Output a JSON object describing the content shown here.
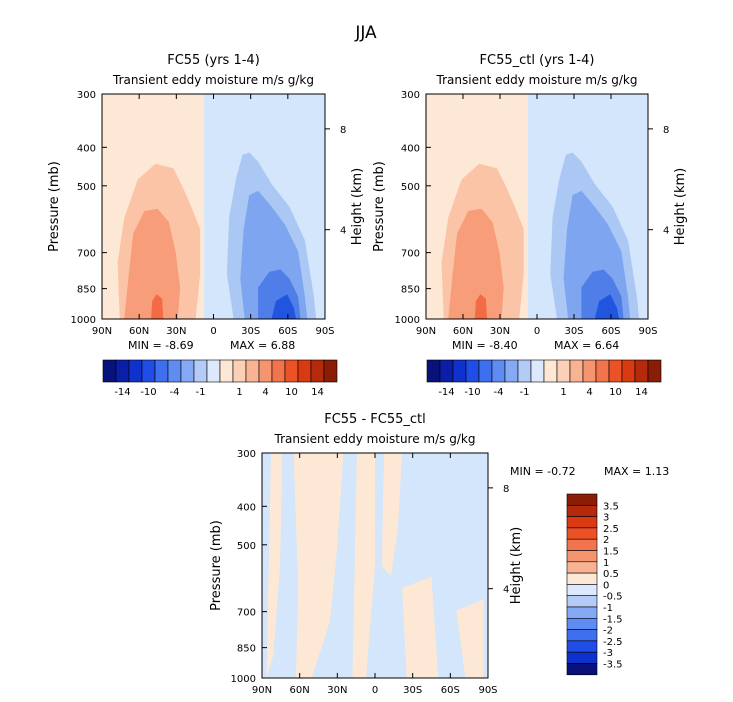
{
  "page_title": "JJA",
  "colors": {
    "pos1": "#fde8d6",
    "pos2": "#fbc4a6",
    "pos3": "#f79d79",
    "pos4": "#f26b45",
    "neg1": "#d3e6fb",
    "neg2": "#abc8f5",
    "neg3": "#7ea6f0",
    "neg4": "#4f7ee8",
    "neg5": "#2155e0",
    "diff_pos": "#fde8d6",
    "diff_neg": "#d3e6fb"
  },
  "chart_data": [
    {
      "id": "panel_fc55",
      "type": "heatmap",
      "title": "FC55 (yrs 1-4)",
      "subtitle": "Transient eddy moisture m/s g/kg",
      "ylabel": "Pressure (mb)",
      "ylabel_right": "Height (km)",
      "x_ticks": [
        "90N",
        "60N",
        "30N",
        "0",
        "30S",
        "60S",
        "90S"
      ],
      "y_ticks": [
        "300",
        "400",
        "500",
        "700",
        "850",
        "1000"
      ],
      "y_right_ticks": [
        "8",
        "4"
      ],
      "xlim": [
        90,
        -90
      ],
      "ylim": [
        1000,
        300
      ],
      "min_label": "MIN = -8.69",
      "max_label": "MAX = 6.88",
      "min": -8.69,
      "max": 6.88
    },
    {
      "id": "panel_ctl",
      "type": "heatmap",
      "title": "FC55_ctl (yrs 1-4)",
      "subtitle": "Transient eddy moisture m/s g/kg",
      "ylabel": "Pressure (mb)",
      "ylabel_right": "Height (km)",
      "x_ticks": [
        "90N",
        "60N",
        "30N",
        "0",
        "30S",
        "60S",
        "90S"
      ],
      "y_ticks": [
        "300",
        "400",
        "500",
        "700",
        "850",
        "1000"
      ],
      "y_right_ticks": [
        "8",
        "4"
      ],
      "xlim": [
        90,
        -90
      ],
      "ylim": [
        1000,
        300
      ],
      "min_label": "MIN = -8.40",
      "max_label": "MAX = 6.64",
      "min": -8.4,
      "max": 6.64
    },
    {
      "id": "panel_diff",
      "type": "heatmap",
      "title": "FC55 - FC55_ctl",
      "subtitle": "Transient eddy moisture m/s g/kg",
      "ylabel": "Pressure (mb)",
      "ylabel_right": "Height (km)",
      "x_ticks": [
        "90N",
        "60N",
        "30N",
        "0",
        "30S",
        "60S",
        "90S"
      ],
      "y_ticks": [
        "300",
        "400",
        "500",
        "700",
        "850",
        "1000"
      ],
      "y_right_ticks": [
        "8",
        "4"
      ],
      "xlim": [
        90,
        -90
      ],
      "ylim": [
        1000,
        300
      ],
      "min_label": "MIN = -0.72",
      "max_label": "MAX = 1.13",
      "min": -0.72,
      "max": 1.13
    }
  ],
  "colorbar_main": {
    "labels": [
      "-14",
      "-10",
      "-4",
      "-1",
      "1",
      "4",
      "10",
      "14"
    ],
    "colors": [
      "#08127a",
      "#0a1ea8",
      "#0f32cf",
      "#1f4de6",
      "#3d6fef",
      "#5f8cf3",
      "#86a9f5",
      "#b4cbf8",
      "#dce9fc",
      "#fde8d6",
      "#fbd0b7",
      "#f8b393",
      "#f59570",
      "#f2744c",
      "#ed5126",
      "#d93a12",
      "#b52a0a",
      "#8a1d06"
    ]
  },
  "colorbar_diff": {
    "labels": [
      "3.5",
      "3",
      "2.5",
      "2",
      "1.5",
      "1",
      "0.5",
      "0",
      "-0.5",
      "-1",
      "-1.5",
      "-2",
      "-2.5",
      "-3",
      "-3.5"
    ],
    "colors": [
      "#8a1d06",
      "#b52a0a",
      "#d93a12",
      "#ed5126",
      "#f2744c",
      "#f59570",
      "#f8b393",
      "#fde8d6",
      "#dce9fc",
      "#b4cbf8",
      "#86a9f5",
      "#5f8cf3",
      "#3d6fef",
      "#1f4de6",
      "#0f32cf",
      "#08127a"
    ]
  }
}
